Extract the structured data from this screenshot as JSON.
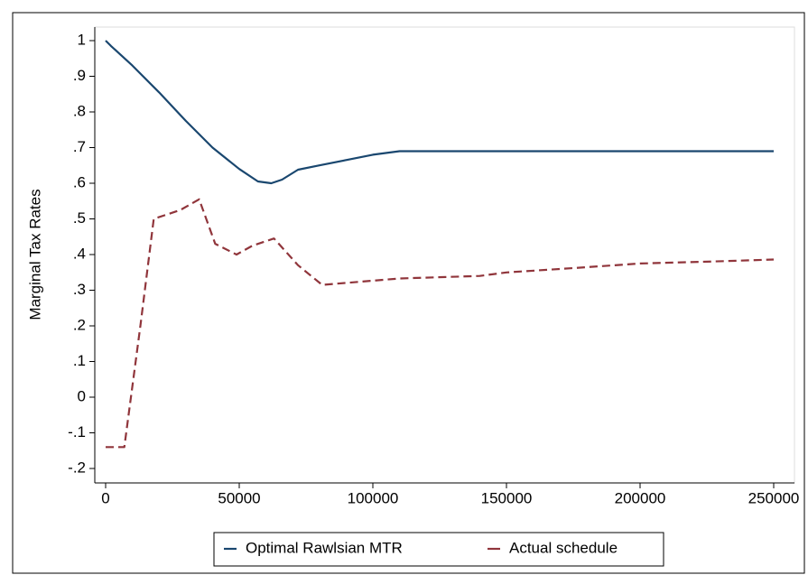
{
  "chart_data": {
    "type": "line",
    "y_label": "Marginal Tax Rates",
    "xlim": [
      0,
      250000
    ],
    "xticks": [
      0,
      50000,
      100000,
      150000,
      200000,
      250000
    ],
    "ylim": [
      -0.2,
      1
    ],
    "yticks": [
      {
        "value": -0.2,
        "label": "-.2"
      },
      {
        "value": -0.1,
        "label": "-.1"
      },
      0,
      {
        "value": 0.1,
        "label": ".1"
      },
      {
        "value": 0.2,
        "label": ".2"
      },
      {
        "value": 0.3,
        "label": ".3"
      },
      {
        "value": 0.4,
        "label": ".4"
      },
      {
        "value": 0.5,
        "label": ".5"
      },
      {
        "value": 0.6,
        "label": ".6"
      },
      {
        "value": 0.7,
        "label": ".7"
      },
      {
        "value": 0.8,
        "label": ".8"
      },
      {
        "value": 0.9,
        "label": ".9"
      },
      1
    ],
    "grid": false,
    "legend": "bottom",
    "series": [
      {
        "name": "Optimal Rawlsian MTR",
        "color": "#1a476f",
        "line_style": "solid",
        "x": [
          0,
          2000,
          10000,
          20000,
          30000,
          40000,
          50000,
          57000,
          62000,
          66000,
          72000,
          80000,
          90000,
          100000,
          110000,
          250000
        ],
        "values": [
          1.0,
          0.985,
          0.93,
          0.855,
          0.775,
          0.7,
          0.64,
          0.605,
          0.6,
          0.61,
          0.638,
          0.65,
          0.665,
          0.68,
          0.69,
          0.69
        ]
      },
      {
        "name": "Actual schedule",
        "color": "#90353b",
        "line_style": "dashed",
        "x": [
          0,
          7000,
          13000,
          18000,
          28000,
          35000,
          41000,
          49000,
          55000,
          63000,
          72000,
          81000,
          110000,
          140000,
          150000,
          175000,
          200000,
          225000,
          250000
        ],
        "values": [
          -0.14,
          -0.14,
          0.2,
          0.5,
          0.525,
          0.555,
          0.43,
          0.4,
          0.425,
          0.445,
          0.37,
          0.315,
          0.333,
          0.34,
          0.35,
          0.362,
          0.375,
          0.38,
          0.386
        ]
      }
    ]
  }
}
